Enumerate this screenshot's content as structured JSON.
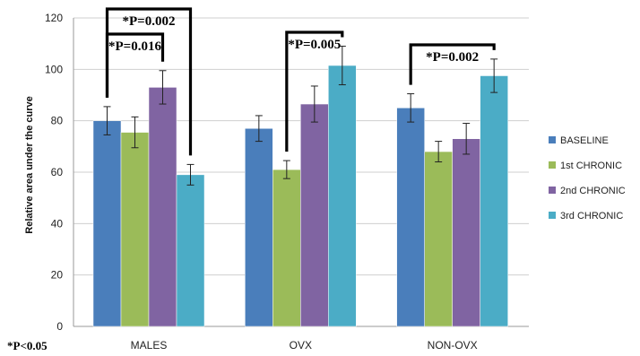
{
  "chart_data": {
    "type": "bar",
    "ylabel": "Relative area under the curve",
    "ylim": [
      0,
      120
    ],
    "yticks": [
      0,
      20,
      40,
      60,
      80,
      100,
      120
    ],
    "grid": true,
    "legend_position": "right",
    "categories": [
      "MALES",
      "OVX",
      "NON-OVX"
    ],
    "series": [
      {
        "name": "BASELINE",
        "color": "#4a7ebb",
        "values": [
          80,
          77,
          85
        ],
        "errors": [
          5.5,
          5,
          5.5
        ]
      },
      {
        "name": "1st CHRONIC",
        "color": "#9bbb59",
        "values": [
          75.5,
          61,
          68
        ],
        "errors": [
          6,
          3.5,
          4
        ]
      },
      {
        "name": "2nd CHRONIC",
        "color": "#8064a2",
        "values": [
          93,
          86.5,
          73
        ],
        "errors": [
          6.5,
          7,
          6
        ]
      },
      {
        "name": "3rd CHRONIC",
        "color": "#4bacc6",
        "values": [
          59,
          101.5,
          97.5
        ],
        "errors": [
          4,
          7.5,
          6.5
        ]
      }
    ],
    "significance": [
      {
        "category": "MALES",
        "from_series": 0,
        "to_series": 3,
        "text": "*P=0.002"
      },
      {
        "category": "MALES",
        "from_series": 0,
        "to_series": 2,
        "text": "*P=0.016"
      },
      {
        "category": "OVX",
        "from_series": 1,
        "to_series": 3,
        "text": "*P=0.005"
      },
      {
        "category": "NON-OVX",
        "from_series": 0,
        "to_series": 3,
        "text": "*P=0.002"
      }
    ],
    "footnote": "*P<0.05"
  }
}
